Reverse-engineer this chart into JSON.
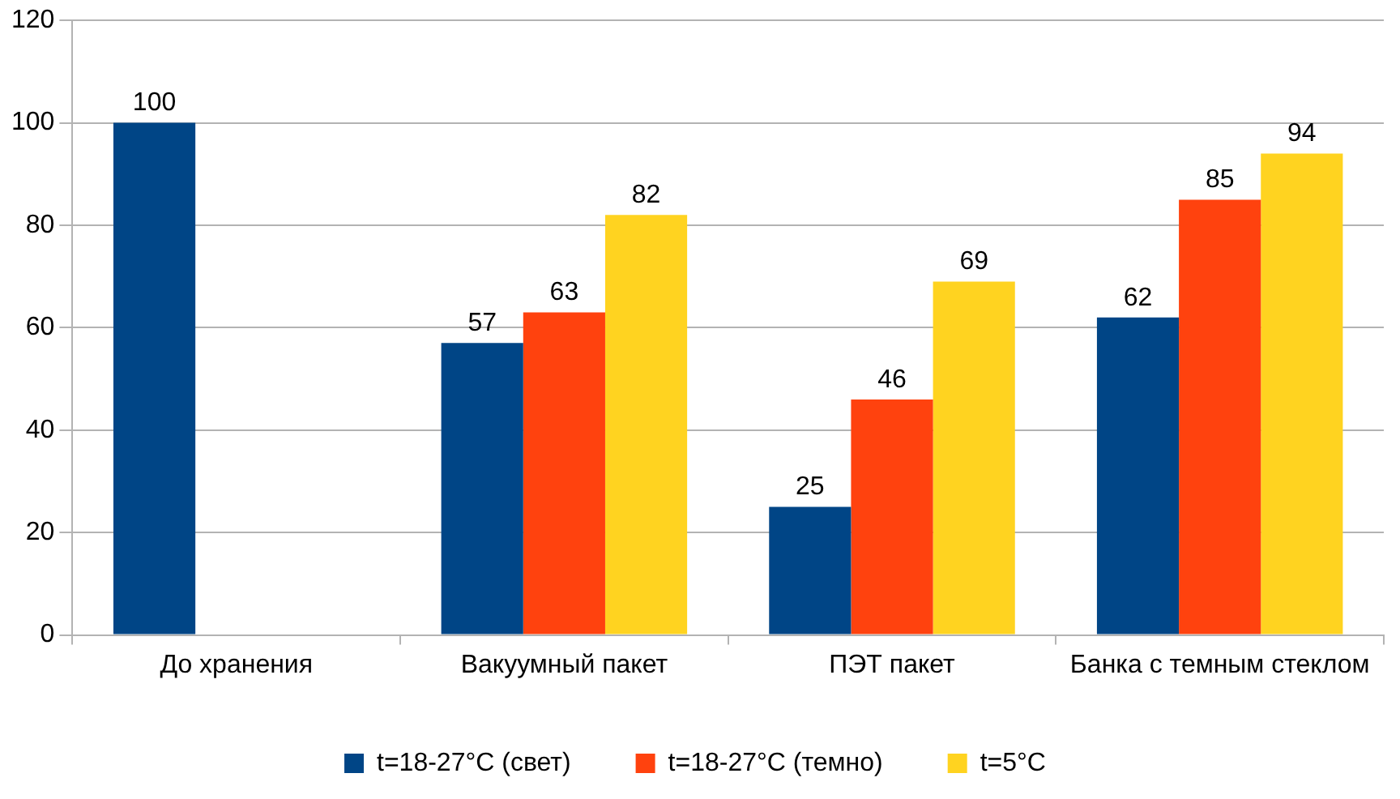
{
  "chart_data": {
    "type": "bar",
    "categories": [
      "До хранения",
      "Вакуумный пакет",
      "ПЭТ пакет",
      "Банка с темным стеклом"
    ],
    "series": [
      {
        "name": "t=18-27°C (свет)",
        "color": "#004586",
        "values": [
          100,
          57,
          25,
          62
        ]
      },
      {
        "name": "t=18-27°C (темно)",
        "color": "#ff420e",
        "values": [
          null,
          63,
          46,
          85
        ]
      },
      {
        "name": "t=5°C",
        "color": "#ffd320",
        "values": [
          null,
          82,
          69,
          94
        ]
      }
    ],
    "ylim": [
      0,
      120
    ],
    "yticks": [
      0,
      20,
      40,
      60,
      80,
      100,
      120
    ],
    "grid": "y",
    "legend": "bottom",
    "data_labels": true
  }
}
